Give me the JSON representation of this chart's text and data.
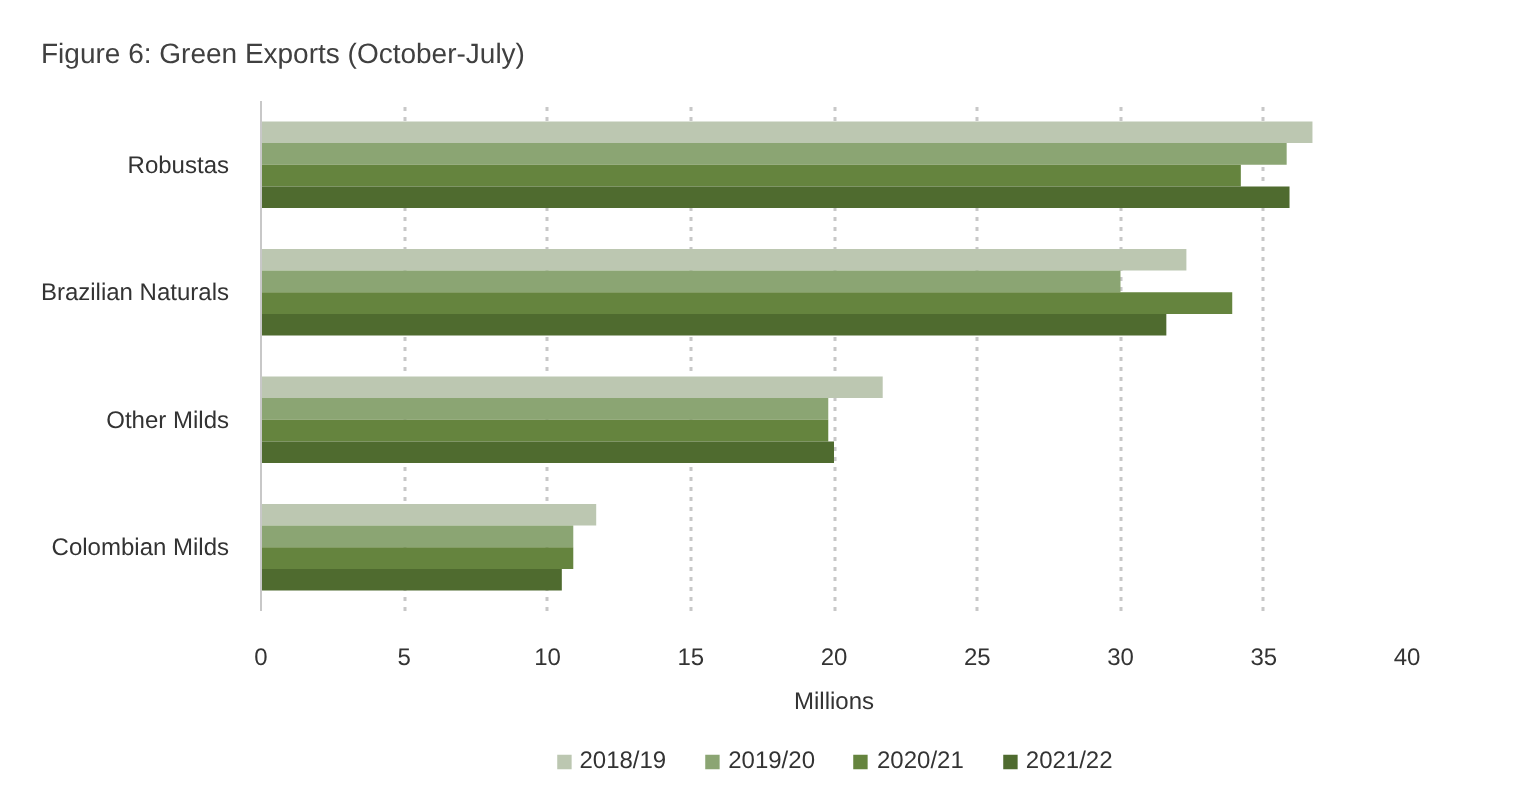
{
  "chart_data": {
    "type": "bar",
    "orientation": "horizontal",
    "title": "Figure 6: Green Exports (October-July)",
    "xlabel": "Millions",
    "categories": [
      "Robustas",
      "Brazilian Naturals",
      "Other Milds",
      "Colombian Milds"
    ],
    "series": [
      {
        "name": "2018/19",
        "color": "#bcc7b1",
        "values": [
          36.7,
          32.3,
          21.7,
          11.7
        ]
      },
      {
        "name": "2019/20",
        "color": "#8ba573",
        "values": [
          35.8,
          30.0,
          19.8,
          10.9
        ]
      },
      {
        "name": "2020/21",
        "color": "#65843e",
        "values": [
          34.2,
          33.9,
          19.8,
          10.9
        ]
      },
      {
        "name": "2021/22",
        "color": "#4f6b2f",
        "values": [
          35.9,
          31.6,
          20.0,
          10.5
        ]
      }
    ],
    "xlim": [
      0,
      40
    ],
    "xticks": [
      0,
      5,
      10,
      15,
      20,
      25,
      30,
      35,
      40
    ],
    "grid": "x",
    "legend": "bottom"
  }
}
